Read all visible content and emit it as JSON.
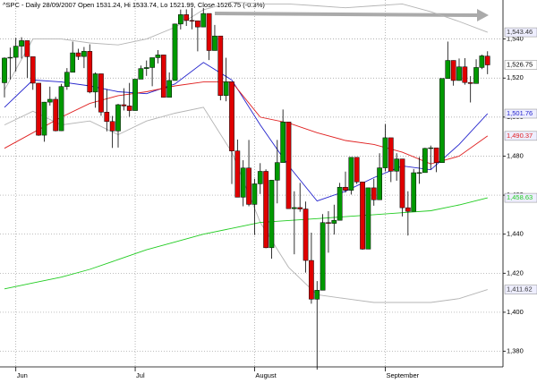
{
  "chart_data": {
    "type": "candlestick",
    "title": "^SPC - Daily 28/09/2007 Open 1531.24, Hi 1533.74, Lo 1521.99, Close 1526.75 (-0.3%)",
    "categories": [
      null,
      null,
      "Jun",
      null,
      null,
      null,
      null,
      null,
      null,
      null,
      null,
      null,
      null,
      null,
      null,
      null,
      null,
      null,
      null,
      null,
      null,
      null,
      null,
      "Jul",
      null,
      null,
      null,
      null,
      null,
      null,
      null,
      null,
      null,
      null,
      null,
      null,
      null,
      null,
      null,
      null,
      null,
      null,
      null,
      null,
      "August",
      null,
      null,
      null,
      null,
      null,
      null,
      null,
      null,
      null,
      null,
      null,
      null,
      null,
      null,
      null,
      null,
      null,
      null,
      null,
      null,
      null,
      null,
      "September",
      null,
      null,
      null,
      null,
      null,
      null,
      null,
      null,
      null,
      null,
      null,
      null,
      null,
      null,
      null,
      null,
      null,
      null
    ],
    "open": [
      1517.6,
      1530.23,
      1530.62,
      1536.34,
      1539.18,
      1530.95,
      1517.38,
      1490.72,
      1507.67,
      1509.12,
      1493.0,
      1515.67,
      1522.97,
      1532.91,
      1531.05,
      1533.7,
      1512.84,
      1522.19,
      1502.56,
      1497.74,
      1492.89,
      1506.34,
      1505.71,
      1503.35,
      1519.43,
      1524.87,
      1525.4,
      1530.44,
      1531.85,
      1510.12,
      1518.76,
      1547.7,
      1552.5,
      1549.52,
      1549.37,
      1546.17,
      1553.08,
      1534.1,
      1541.57,
      1511.04,
      1518.09,
      1482.66,
      1458.95,
      1473.91,
      1455.27,
      1465.81,
      1472.2,
      1433.06,
      1467.67,
      1476.71,
      1497.49,
      1453.09,
      1453.64,
      1452.92,
      1426.54,
      1406.7,
      1411.27,
      1445.94,
      1445.55,
      1447.12,
      1464.07,
      1462.5,
      1479.37,
      1466.79,
      1432.36,
      1463.76,
      1457.64,
      1473.99,
      1489.42,
      1472.29,
      1478.55,
      1453.55,
      1451.7,
      1471.49,
      1471.56,
      1483.95,
      1484.25,
      1476.65,
      1519.78,
      1529.03,
      1518.75,
      1525.75,
      1517.73,
      1517.21,
      1525.42,
      1531.24
    ],
    "high": [
      1530.6,
      1535.6,
      1540.6,
      1540.9,
      1539.2,
      1530.9,
      1517.4,
      1507.8,
      1515.6,
      1510.4,
      1517.0,
      1525.1,
      1538.7,
      1535.0,
      1535.9,
      1537.3,
      1522.9,
      1522.2,
      1514.3,
      1500.6,
      1506.8,
      1514.8,
      1517.5,
      1519.5,
      1526.4,
      1529.0,
      1530.4,
      1534.3,
      1531.9,
      1522.9,
      1547.9,
      1555.1,
      1555.2,
      1555.9,
      1549.4,
      1555.9,
      1553.1,
      1547.2,
      1541.6,
      1530.4,
      1518.1,
      1488.5,
      1477.9,
      1488.3,
      1468.4,
      1476.4,
      1473.2,
      1467.7,
      1488.3,
      1503.9,
      1497.5,
      1462.0,
      1466.3,
      1456.7,
      1440.8,
      1415.97,
      1450.3,
      1451.8,
      1455.1,
      1466.3,
      1472.1,
      1479.4,
      1479.4,
      1466.8,
      1463.8,
      1468.4,
      1481.5,
      1496.4,
      1489.4,
      1481.5,
      1478.6,
      1462.0,
      1473.4,
      1479.5,
      1484.3,
      1485.4,
      1484.3,
      1519.9,
      1538.7,
      1529.1,
      1530.0,
      1530.2,
      1521.0,
      1529.6,
      1532.0,
      1533.74
    ],
    "low": [
      1510.1,
      1519.3,
      1523.3,
      1530.0,
      1520.1,
      1514.0,
      1490.4,
      1487.4,
      1505.9,
      1492.7,
      1492.9,
      1514.0,
      1522.9,
      1529.3,
      1525.1,
      1512.2,
      1504.8,
      1500.7,
      1492.7,
      1484.2,
      1484.4,
      1503.4,
      1500.2,
      1503.4,
      1519.4,
      1521.1,
      1515.8,
      1527.5,
      1510.0,
      1510.1,
      1518.7,
      1544.9,
      1546.7,
      1545.0,
      1533.7,
      1546.2,
      1529.2,
      1534.1,
      1508.6,
      1508.1,
      1465.7,
      1458.9,
      1454.3,
      1454.3,
      1439.6,
      1460.6,
      1432.8,
      1427.4,
      1455.8,
      1476.7,
      1453.1,
      1429.7,
      1451.5,
      1420.3,
      1404.4,
      1370.6,
      1411.3,
      1430.5,
      1439.8,
      1447.1,
      1461.3,
      1460.3,
      1465.7,
      1432.0,
      1432.4,
      1454.6,
      1457.6,
      1472.2,
      1466.7,
      1467.4,
      1449.1,
      1439.3,
      1451.7,
      1465.8,
      1471.6,
      1473.2,
      1471.8,
      1476.7,
      1519.8,
      1516.1,
      1518.7,
      1516.6,
      1507.5,
      1517.2,
      1524.6,
      1521.99
    ],
    "close": [
      1530.23,
      1530.62,
      1536.34,
      1539.18,
      1530.95,
      1517.38,
      1490.72,
      1507.67,
      1509.12,
      1493.0,
      1515.67,
      1522.97,
      1532.91,
      1531.05,
      1533.7,
      1512.84,
      1522.19,
      1502.56,
      1497.74,
      1492.89,
      1506.34,
      1505.71,
      1503.35,
      1519.43,
      1524.87,
      1525.4,
      1530.44,
      1531.85,
      1510.12,
      1518.76,
      1547.7,
      1552.5,
      1549.52,
      1549.37,
      1546.17,
      1553.08,
      1534.1,
      1541.57,
      1511.04,
      1518.09,
      1482.66,
      1458.95,
      1473.91,
      1455.27,
      1465.81,
      1472.2,
      1433.06,
      1467.67,
      1476.71,
      1497.49,
      1453.09,
      1453.64,
      1452.92,
      1426.54,
      1406.7,
      1411.27,
      1445.94,
      1445.55,
      1447.12,
      1464.07,
      1462.5,
      1479.37,
      1466.79,
      1432.36,
      1463.76,
      1457.64,
      1473.99,
      1489.42,
      1472.29,
      1478.55,
      1453.55,
      1451.7,
      1471.49,
      1471.56,
      1483.95,
      1484.25,
      1476.65,
      1519.78,
      1529.03,
      1518.75,
      1525.75,
      1517.73,
      1517.21,
      1525.42,
      1531.38,
      1526.75
    ],
    "close_label": "1,526.75",
    "up_color": "#009900",
    "down_color": "#e00000",
    "overlays": [
      {
        "x": [
          0,
          5,
          10,
          15,
          20,
          25,
          30,
          35,
          40,
          45,
          50,
          55,
          60,
          65,
          70,
          75,
          80,
          85
        ],
        "values": [
          1514,
          1540,
          1540,
          1538,
          1537,
          1540,
          1546,
          1555,
          1559,
          1558,
          1558,
          1557,
          1556,
          1557,
          1558,
          1554,
          1549,
          1543.46
        ],
        "color": "#b4b4b4",
        "last_label": "1,543.46"
      },
      {
        "x": [
          0,
          5,
          10,
          15,
          20,
          25,
          30,
          35,
          40,
          45,
          50,
          55,
          60,
          65,
          70,
          75,
          80,
          85
        ],
        "values": [
          1496,
          1503,
          1496,
          1498,
          1491,
          1498,
          1502,
          1505,
          1482,
          1446,
          1423,
          1409,
          1407,
          1405,
          1405,
          1405,
          1407,
          1411.62
        ],
        "color": "#b4b4b4",
        "last_label": "1,411.62"
      },
      {
        "x": [
          0,
          5,
          10,
          15,
          20,
          25,
          30,
          35,
          40,
          45,
          50,
          55,
          60,
          65,
          70,
          75,
          80,
          85
        ],
        "values": [
          1505,
          1519,
          1518,
          1516,
          1513,
          1512,
          1517,
          1528,
          1519,
          1496,
          1475,
          1457,
          1462,
          1469,
          1475,
          1473,
          1486,
          1501.76
        ],
        "color": "#2222cc",
        "last_label": "1,501.76"
      },
      {
        "x": [
          0,
          5,
          10,
          15,
          20,
          25,
          30,
          35,
          40,
          45,
          50,
          55,
          60,
          65,
          70,
          75,
          80,
          85
        ],
        "values": [
          1484,
          1492,
          1500,
          1507,
          1511,
          1513,
          1516,
          1518,
          1518,
          1500,
          1497,
          1492,
          1488,
          1486,
          1482,
          1476,
          1480,
          1490.37
        ],
        "color": "#e02020",
        "last_label": "1,490.37"
      },
      {
        "x": [
          0,
          5,
          10,
          15,
          20,
          25,
          30,
          35,
          40,
          45,
          50,
          55,
          60,
          65,
          70,
          75,
          80,
          85
        ],
        "values": [
          1412,
          1415,
          1418,
          1422,
          1427,
          1432,
          1436,
          1440,
          1443,
          1446,
          1447,
          1448,
          1449,
          1450,
          1451,
          1452,
          1455,
          1458.63
        ],
        "color": "#22cc22",
        "last_label": "1,458.63"
      }
    ],
    "ylim": [
      1372,
      1560
    ],
    "yticks": [
      {
        "value": 1380,
        "label": "1,380"
      },
      {
        "value": 1400,
        "label": "1,400"
      },
      {
        "value": 1420,
        "label": "1,420"
      },
      {
        "value": 1440,
        "label": "1,440"
      },
      {
        "value": 1460,
        "label": "1,460"
      },
      {
        "value": 1480,
        "label": "1,480"
      },
      {
        "value": 1500,
        "label": "1,500"
      },
      {
        "value": 1520,
        "label": "1,520"
      },
      {
        "value": 1540,
        "label": "1,540"
      }
    ],
    "grid": true
  }
}
